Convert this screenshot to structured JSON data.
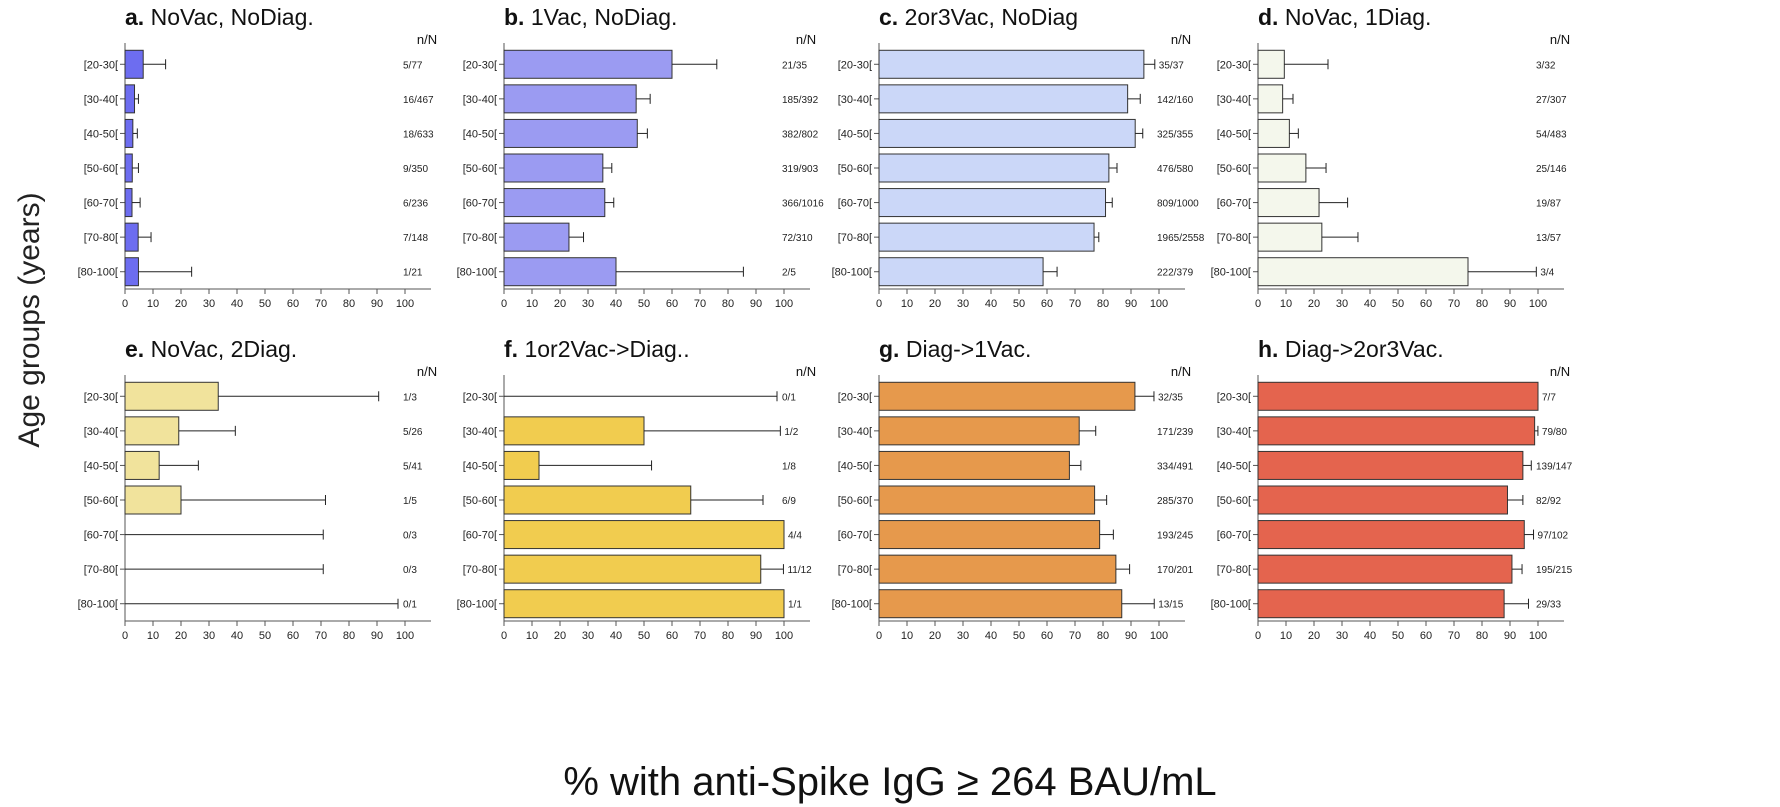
{
  "figure": {
    "ylabel": "Age groups (years)",
    "xlabel": "% with anti-Spike IgG ≥ 264 BAU/mL",
    "nN_header": "n/N"
  },
  "chart_data": [
    {
      "type": "bar",
      "orientation": "horizontal",
      "panel_letter": "a.",
      "title": "NoVac, NoDiag.",
      "color": "#6d6df0",
      "categories": [
        "[20-30[",
        "[30-40[",
        "[40-50[",
        "[50-60[",
        "[60-70[",
        "[70-80[",
        "[80-100["
      ],
      "values": [
        6.5,
        3.4,
        2.8,
        2.6,
        2.5,
        4.7,
        4.8
      ],
      "error_upper": [
        14.5,
        4.8,
        4.4,
        4.8,
        5.4,
        9.3,
        23.8
      ],
      "labels": [
        "5/77",
        "16/467",
        "18/633",
        "9/350",
        "6/236",
        "7/148",
        "1/21"
      ],
      "xticks": [
        0,
        10,
        20,
        30,
        40,
        50,
        60,
        70,
        80,
        90,
        100
      ],
      "xlim": [
        0,
        100
      ]
    },
    {
      "type": "bar",
      "orientation": "horizontal",
      "panel_letter": "b.",
      "title": "1Vac, NoDiag.",
      "color": "#9b9bf2",
      "categories": [
        "[20-30[",
        "[30-40[",
        "[40-50[",
        "[50-60[",
        "[60-70[",
        "[70-80[",
        "[80-100["
      ],
      "values": [
        60,
        47.2,
        47.6,
        35.3,
        36,
        23.2,
        40
      ],
      "error_upper": [
        76,
        52.2,
        51.2,
        38.5,
        39.2,
        28.4,
        85.5
      ],
      "labels": [
        "21/35",
        "185/392",
        "382/802",
        "319/903",
        "366/1016",
        "72/310",
        "2/5"
      ],
      "xticks": [
        0,
        10,
        20,
        30,
        40,
        50,
        60,
        70,
        80,
        90,
        100
      ],
      "xlim": [
        0,
        100
      ]
    },
    {
      "type": "bar",
      "orientation": "horizontal",
      "panel_letter": "c.",
      "title": "2or3Vac, NoDiag",
      "color": "#cbd7f8",
      "categories": [
        "[20-30[",
        "[30-40[",
        "[40-50[",
        "[50-60[",
        "[60-70[",
        "[70-80[",
        "[80-100["
      ],
      "values": [
        94.6,
        88.8,
        91.5,
        82.1,
        80.9,
        76.8,
        58.6
      ],
      "error_upper": [
        98.5,
        93.3,
        94.2,
        85,
        83.3,
        78.5,
        63.6
      ],
      "labels": [
        "35/37",
        "142/160",
        "325/355",
        "476/580",
        "809/1000",
        "1965/2558",
        "222/379"
      ],
      "xticks": [
        0,
        10,
        20,
        30,
        40,
        50,
        60,
        70,
        80,
        90,
        100
      ],
      "xlim": [
        0,
        100
      ]
    },
    {
      "type": "bar",
      "orientation": "horizontal",
      "panel_letter": "d.",
      "title": "NoVac, 1Diag.",
      "color": "#f4f7ec",
      "categories": [
        "[20-30[",
        "[30-40[",
        "[40-50[",
        "[50-60[",
        "[60-70[",
        "[70-80[",
        "[80-100["
      ],
      "values": [
        9.4,
        8.8,
        11.2,
        17.1,
        21.8,
        22.8,
        75
      ],
      "error_upper": [
        25,
        12.5,
        14.4,
        24.3,
        32,
        35.7,
        99.4
      ],
      "labels": [
        "3/32",
        "27/307",
        "54/483",
        "25/146",
        "19/87",
        "13/57",
        "3/4"
      ],
      "xticks": [
        0,
        10,
        20,
        30,
        40,
        50,
        60,
        70,
        80,
        90,
        100
      ],
      "xlim": [
        0,
        100
      ]
    },
    {
      "type": "bar",
      "orientation": "horizontal",
      "panel_letter": "e.",
      "title": "NoVac, 2Diag.",
      "color": "#f1e39c",
      "categories": [
        "[20-30[",
        "[30-40[",
        "[40-50[",
        "[50-60[",
        "[60-70[",
        "[70-80[",
        "[80-100["
      ],
      "values": [
        33.3,
        19.2,
        12.2,
        20,
        0,
        0,
        0
      ],
      "error_upper": [
        90.6,
        39.4,
        26.2,
        71.6,
        70.8,
        70.8,
        97.5
      ],
      "labels": [
        "1/3",
        "5/26",
        "5/41",
        "1/5",
        "0/3",
        "0/3",
        "0/1"
      ],
      "xticks": [
        0,
        10,
        20,
        30,
        40,
        50,
        60,
        70,
        80,
        90,
        100
      ],
      "xlim": [
        0,
        100
      ]
    },
    {
      "type": "bar",
      "orientation": "horizontal",
      "panel_letter": "f.",
      "title": "1or2Vac->Diag..",
      "color": "#f1cc4f",
      "categories": [
        "[20-30[",
        "[30-40[",
        "[40-50[",
        "[50-60[",
        "[60-70[",
        "[70-80[",
        "[80-100["
      ],
      "values": [
        0,
        50,
        12.5,
        66.7,
        100,
        91.7,
        100
      ],
      "error_upper": [
        97.5,
        98.7,
        52.7,
        92.5,
        100,
        99.8,
        100
      ],
      "labels": [
        "0/1",
        "1/2",
        "1/8",
        "6/9",
        "4/4",
        "11/12",
        "1/1"
      ],
      "xticks": [
        0,
        10,
        20,
        30,
        40,
        50,
        60,
        70,
        80,
        90,
        100
      ],
      "xlim": [
        0,
        100
      ]
    },
    {
      "type": "bar",
      "orientation": "horizontal",
      "panel_letter": "g.",
      "title": "Diag->1Vac.",
      "color": "#e6994c",
      "categories": [
        "[20-30[",
        "[30-40[",
        "[40-50[",
        "[50-60[",
        "[60-70[",
        "[70-80[",
        "[80-100["
      ],
      "values": [
        91.4,
        71.5,
        68,
        77,
        78.8,
        84.6,
        86.7
      ],
      "error_upper": [
        98.2,
        77.4,
        72.1,
        81.3,
        83.7,
        89.5,
        98.3
      ],
      "labels": [
        "32/35",
        "171/239",
        "334/491",
        "285/370",
        "193/245",
        "170/201",
        "13/15"
      ],
      "xticks": [
        0,
        10,
        20,
        30,
        40,
        50,
        60,
        70,
        80,
        90,
        100
      ],
      "xlim": [
        0,
        100
      ]
    },
    {
      "type": "bar",
      "orientation": "horizontal",
      "panel_letter": "h.",
      "title": "Diag->2or3Vac.",
      "color": "#e4644e",
      "categories": [
        "[20-30[",
        "[30-40[",
        "[40-50[",
        "[50-60[",
        "[60-70[",
        "[70-80[",
        "[80-100["
      ],
      "values": [
        100,
        98.8,
        94.6,
        89.1,
        95.1,
        90.7,
        87.9
      ],
      "error_upper": [
        100,
        99.97,
        97.6,
        94.6,
        98.4,
        94.3,
        96.6
      ],
      "labels": [
        "7/7",
        "79/80",
        "139/147",
        "82/92",
        "97/102",
        "195/215",
        "29/33"
      ],
      "xticks": [
        0,
        10,
        20,
        30,
        40,
        50,
        60,
        70,
        80,
        90,
        100
      ],
      "xlim": [
        0,
        100
      ]
    }
  ]
}
